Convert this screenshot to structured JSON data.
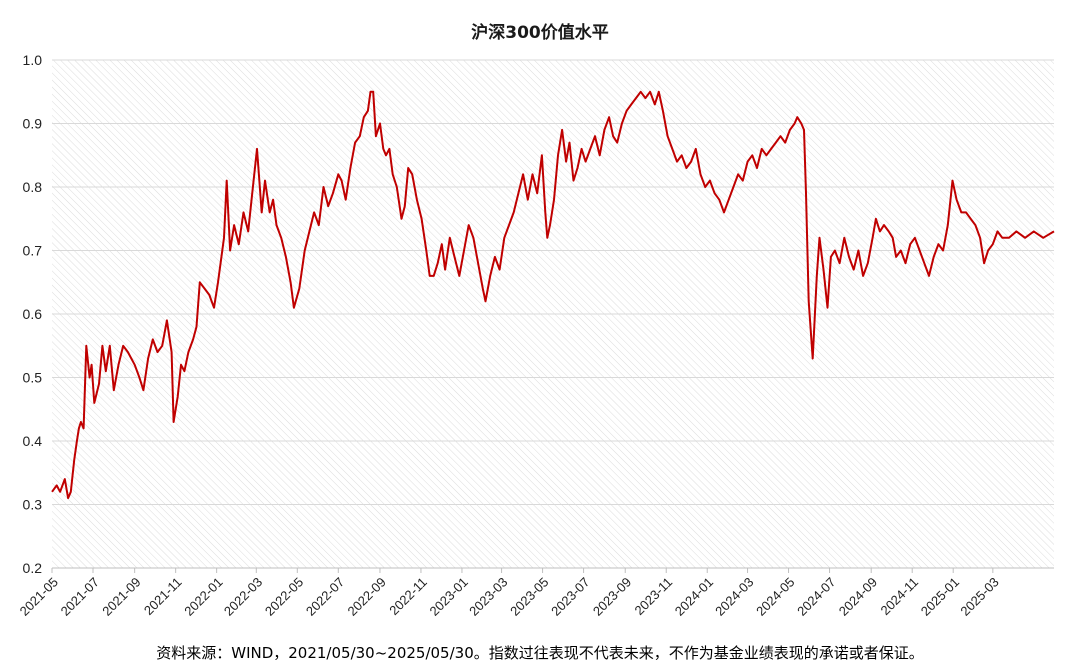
{
  "chart_data": {
    "type": "line",
    "title": "沪深300价值水平",
    "source_note": "资料来源：WIND，2021/05/30~2025/05/30。指数过往表现不代表未来，不作为基金业绩表现的承诺或者保证。",
    "xlabel": "",
    "ylabel": "",
    "ylim": [
      0.2,
      1.0
    ],
    "y_ticks": [
      "0.2",
      "0.3",
      "0.4",
      "0.5",
      "0.6",
      "0.7",
      "0.8",
      "0.9",
      "1.0"
    ],
    "x_range": [
      "2021-05-01",
      "2025-05-31"
    ],
    "x_ticks": [
      "2021-05",
      "2021-07",
      "2021-09",
      "2021-11",
      "2022-01",
      "2022-03",
      "2022-05",
      "2022-07",
      "2022-09",
      "2022-11",
      "2023-01",
      "2023-03",
      "2023-05",
      "2023-07",
      "2023-09",
      "2023-11",
      "2024-01",
      "2024-03",
      "2024-05",
      "2024-07",
      "2024-09",
      "2024-11",
      "2025-01",
      "2025-03"
    ],
    "grid": true,
    "background": "hatched",
    "series": [
      {
        "color": "#c00000",
        "points": [
          [
            "2021-05-01",
            0.32
          ],
          [
            "2021-05-08",
            0.33
          ],
          [
            "2021-05-13",
            0.32
          ],
          [
            "2021-05-20",
            0.34
          ],
          [
            "2021-05-25",
            0.31
          ],
          [
            "2021-05-29",
            0.32
          ],
          [
            "2021-06-03",
            0.37
          ],
          [
            "2021-06-07",
            0.4
          ],
          [
            "2021-06-10",
            0.42
          ],
          [
            "2021-06-13",
            0.43
          ],
          [
            "2021-06-17",
            0.42
          ],
          [
            "2021-06-21",
            0.55
          ],
          [
            "2021-06-26",
            0.5
          ],
          [
            "2021-06-29",
            0.52
          ],
          [
            "2021-07-03",
            0.46
          ],
          [
            "2021-07-10",
            0.49
          ],
          [
            "2021-07-15",
            0.55
          ],
          [
            "2021-07-20",
            0.51
          ],
          [
            "2021-07-26",
            0.55
          ],
          [
            "2021-08-01",
            0.48
          ],
          [
            "2021-08-08",
            0.52
          ],
          [
            "2021-08-15",
            0.55
          ],
          [
            "2021-08-22",
            0.54
          ],
          [
            "2021-09-01",
            0.52
          ],
          [
            "2021-09-08",
            0.5
          ],
          [
            "2021-09-14",
            0.48
          ],
          [
            "2021-09-21",
            0.53
          ],
          [
            "2021-09-28",
            0.56
          ],
          [
            "2021-10-05",
            0.54
          ],
          [
            "2021-10-12",
            0.55
          ],
          [
            "2021-10-19",
            0.59
          ],
          [
            "2021-10-26",
            0.54
          ],
          [
            "2021-10-29",
            0.43
          ],
          [
            "2021-11-04",
            0.47
          ],
          [
            "2021-11-09",
            0.52
          ],
          [
            "2021-11-14",
            0.51
          ],
          [
            "2021-11-20",
            0.54
          ],
          [
            "2021-11-27",
            0.56
          ],
          [
            "2021-12-02",
            0.58
          ],
          [
            "2021-12-07",
            0.65
          ],
          [
            "2021-12-14",
            0.64
          ],
          [
            "2021-12-21",
            0.63
          ],
          [
            "2021-12-28",
            0.61
          ],
          [
            "2022-01-03",
            0.65
          ],
          [
            "2022-01-12",
            0.72
          ],
          [
            "2022-01-16",
            0.81
          ],
          [
            "2022-01-21",
            0.7
          ],
          [
            "2022-01-27",
            0.74
          ],
          [
            "2022-02-03",
            0.71
          ],
          [
            "2022-02-10",
            0.76
          ],
          [
            "2022-02-17",
            0.73
          ],
          [
            "2022-02-24",
            0.8
          ],
          [
            "2022-03-02",
            0.86
          ],
          [
            "2022-03-09",
            0.76
          ],
          [
            "2022-03-14",
            0.81
          ],
          [
            "2022-03-21",
            0.76
          ],
          [
            "2022-03-26",
            0.78
          ],
          [
            "2022-03-31",
            0.74
          ],
          [
            "2022-04-07",
            0.72
          ],
          [
            "2022-04-14",
            0.69
          ],
          [
            "2022-04-21",
            0.65
          ],
          [
            "2022-04-26",
            0.61
          ],
          [
            "2022-05-04",
            0.64
          ],
          [
            "2022-05-12",
            0.7
          ],
          [
            "2022-05-19",
            0.73
          ],
          [
            "2022-05-26",
            0.76
          ],
          [
            "2022-06-02",
            0.74
          ],
          [
            "2022-06-09",
            0.8
          ],
          [
            "2022-06-16",
            0.77
          ],
          [
            "2022-06-23",
            0.79
          ],
          [
            "2022-07-01",
            0.82
          ],
          [
            "2022-07-06",
            0.81
          ],
          [
            "2022-07-12",
            0.78
          ],
          [
            "2022-07-19",
            0.83
          ],
          [
            "2022-07-26",
            0.87
          ],
          [
            "2022-08-02",
            0.88
          ],
          [
            "2022-08-08",
            0.91
          ],
          [
            "2022-08-14",
            0.92
          ],
          [
            "2022-08-18",
            0.95
          ],
          [
            "2022-08-22",
            0.95
          ],
          [
            "2022-08-26",
            0.88
          ],
          [
            "2022-09-01",
            0.9
          ],
          [
            "2022-09-06",
            0.86
          ],
          [
            "2022-09-10",
            0.85
          ],
          [
            "2022-09-15",
            0.86
          ],
          [
            "2022-09-20",
            0.82
          ],
          [
            "2022-09-26",
            0.8
          ],
          [
            "2022-10-03",
            0.75
          ],
          [
            "2022-10-08",
            0.77
          ],
          [
            "2022-10-13",
            0.83
          ],
          [
            "2022-10-19",
            0.82
          ],
          [
            "2022-10-26",
            0.78
          ],
          [
            "2022-11-02",
            0.75
          ],
          [
            "2022-11-09",
            0.7
          ],
          [
            "2022-11-14",
            0.66
          ],
          [
            "2022-11-20",
            0.66
          ],
          [
            "2022-11-26",
            0.68
          ],
          [
            "2022-12-02",
            0.71
          ],
          [
            "2022-12-07",
            0.67
          ],
          [
            "2022-12-14",
            0.72
          ],
          [
            "2022-12-21",
            0.69
          ],
          [
            "2022-12-28",
            0.66
          ],
          [
            "2023-01-04",
            0.7
          ],
          [
            "2023-01-11",
            0.74
          ],
          [
            "2023-01-18",
            0.72
          ],
          [
            "2023-01-25",
            0.68
          ],
          [
            "2023-02-01",
            0.64
          ],
          [
            "2023-02-05",
            0.62
          ],
          [
            "2023-02-12",
            0.66
          ],
          [
            "2023-02-19",
            0.69
          ],
          [
            "2023-02-26",
            0.67
          ],
          [
            "2023-03-05",
            0.72
          ],
          [
            "2023-03-12",
            0.74
          ],
          [
            "2023-03-19",
            0.76
          ],
          [
            "2023-03-26",
            0.79
          ],
          [
            "2023-04-02",
            0.82
          ],
          [
            "2023-04-09",
            0.78
          ],
          [
            "2023-04-16",
            0.82
          ],
          [
            "2023-04-23",
            0.79
          ],
          [
            "2023-04-30",
            0.85
          ],
          [
            "2023-05-05",
            0.76
          ],
          [
            "2023-05-08",
            0.72
          ],
          [
            "2023-05-12",
            0.74
          ],
          [
            "2023-05-18",
            0.78
          ],
          [
            "2023-05-24",
            0.85
          ],
          [
            "2023-05-30",
            0.89
          ],
          [
            "2023-06-05",
            0.84
          ],
          [
            "2023-06-10",
            0.87
          ],
          [
            "2023-06-16",
            0.81
          ],
          [
            "2023-06-22",
            0.83
          ],
          [
            "2023-06-28",
            0.86
          ],
          [
            "2023-07-04",
            0.84
          ],
          [
            "2023-07-11",
            0.86
          ],
          [
            "2023-07-18",
            0.88
          ],
          [
            "2023-07-25",
            0.85
          ],
          [
            "2023-08-01",
            0.89
          ],
          [
            "2023-08-08",
            0.91
          ],
          [
            "2023-08-14",
            0.88
          ],
          [
            "2023-08-20",
            0.87
          ],
          [
            "2023-08-27",
            0.9
          ],
          [
            "2023-09-03",
            0.92
          ],
          [
            "2023-09-10",
            0.93
          ],
          [
            "2023-09-17",
            0.94
          ],
          [
            "2023-09-24",
            0.95
          ],
          [
            "2023-10-01",
            0.94
          ],
          [
            "2023-10-08",
            0.95
          ],
          [
            "2023-10-15",
            0.93
          ],
          [
            "2023-10-21",
            0.95
          ],
          [
            "2023-10-27",
            0.92
          ],
          [
            "2023-11-03",
            0.88
          ],
          [
            "2023-11-10",
            0.86
          ],
          [
            "2023-11-17",
            0.84
          ],
          [
            "2023-11-24",
            0.85
          ],
          [
            "2023-12-01",
            0.83
          ],
          [
            "2023-12-08",
            0.84
          ],
          [
            "2023-12-15",
            0.86
          ],
          [
            "2023-12-22",
            0.82
          ],
          [
            "2023-12-29",
            0.8
          ],
          [
            "2024-01-05",
            0.81
          ],
          [
            "2024-01-12",
            0.79
          ],
          [
            "2024-01-19",
            0.78
          ],
          [
            "2024-01-26",
            0.76
          ],
          [
            "2024-02-02",
            0.78
          ],
          [
            "2024-02-09",
            0.8
          ],
          [
            "2024-02-16",
            0.82
          ],
          [
            "2024-02-23",
            0.81
          ],
          [
            "2024-03-01",
            0.84
          ],
          [
            "2024-03-08",
            0.85
          ],
          [
            "2024-03-15",
            0.83
          ],
          [
            "2024-03-22",
            0.86
          ],
          [
            "2024-03-29",
            0.85
          ],
          [
            "2024-04-05",
            0.86
          ],
          [
            "2024-04-12",
            0.87
          ],
          [
            "2024-04-19",
            0.88
          ],
          [
            "2024-04-26",
            0.87
          ],
          [
            "2024-05-03",
            0.89
          ],
          [
            "2024-05-10",
            0.9
          ],
          [
            "2024-05-14",
            0.91
          ],
          [
            "2024-05-20",
            0.9
          ],
          [
            "2024-05-24",
            0.89
          ],
          [
            "2024-05-27",
            0.79
          ],
          [
            "2024-05-31",
            0.62
          ],
          [
            "2024-06-06",
            0.53
          ],
          [
            "2024-06-12",
            0.66
          ],
          [
            "2024-06-16",
            0.72
          ],
          [
            "2024-06-22",
            0.67
          ],
          [
            "2024-06-28",
            0.61
          ],
          [
            "2024-07-03",
            0.69
          ],
          [
            "2024-07-09",
            0.7
          ],
          [
            "2024-07-16",
            0.68
          ],
          [
            "2024-07-23",
            0.72
          ],
          [
            "2024-07-30",
            0.69
          ],
          [
            "2024-08-06",
            0.67
          ],
          [
            "2024-08-13",
            0.7
          ],
          [
            "2024-08-20",
            0.66
          ],
          [
            "2024-08-27",
            0.68
          ],
          [
            "2024-09-03",
            0.72
          ],
          [
            "2024-09-08",
            0.75
          ],
          [
            "2024-09-14",
            0.73
          ],
          [
            "2024-09-20",
            0.74
          ],
          [
            "2024-09-27",
            0.73
          ],
          [
            "2024-10-03",
            0.72
          ],
          [
            "2024-10-08",
            0.69
          ],
          [
            "2024-10-15",
            0.7
          ],
          [
            "2024-10-22",
            0.68
          ],
          [
            "2024-10-29",
            0.71
          ],
          [
            "2024-11-05",
            0.72
          ],
          [
            "2024-11-12",
            0.7
          ],
          [
            "2024-11-19",
            0.68
          ],
          [
            "2024-11-26",
            0.66
          ],
          [
            "2024-12-03",
            0.69
          ],
          [
            "2024-12-10",
            0.71
          ],
          [
            "2024-12-17",
            0.7
          ],
          [
            "2024-12-24",
            0.74
          ],
          [
            "2024-12-31",
            0.81
          ],
          [
            "2025-01-06",
            0.78
          ],
          [
            "2025-01-13",
            0.76
          ],
          [
            "2025-01-20",
            0.76
          ],
          [
            "2025-01-27",
            0.75
          ],
          [
            "2025-02-03",
            0.74
          ],
          [
            "2025-02-10",
            0.72
          ],
          [
            "2025-02-16",
            0.68
          ],
          [
            "2025-02-22",
            0.7
          ],
          [
            "2025-03-01",
            0.71
          ],
          [
            "2025-03-08",
            0.73
          ],
          [
            "2025-03-15",
            0.72
          ],
          [
            "2025-03-25",
            0.72
          ],
          [
            "2025-04-05",
            0.73
          ],
          [
            "2025-04-18",
            0.72
          ],
          [
            "2025-05-01",
            0.73
          ],
          [
            "2025-05-15",
            0.72
          ],
          [
            "2025-05-31",
            0.73
          ]
        ]
      }
    ]
  }
}
